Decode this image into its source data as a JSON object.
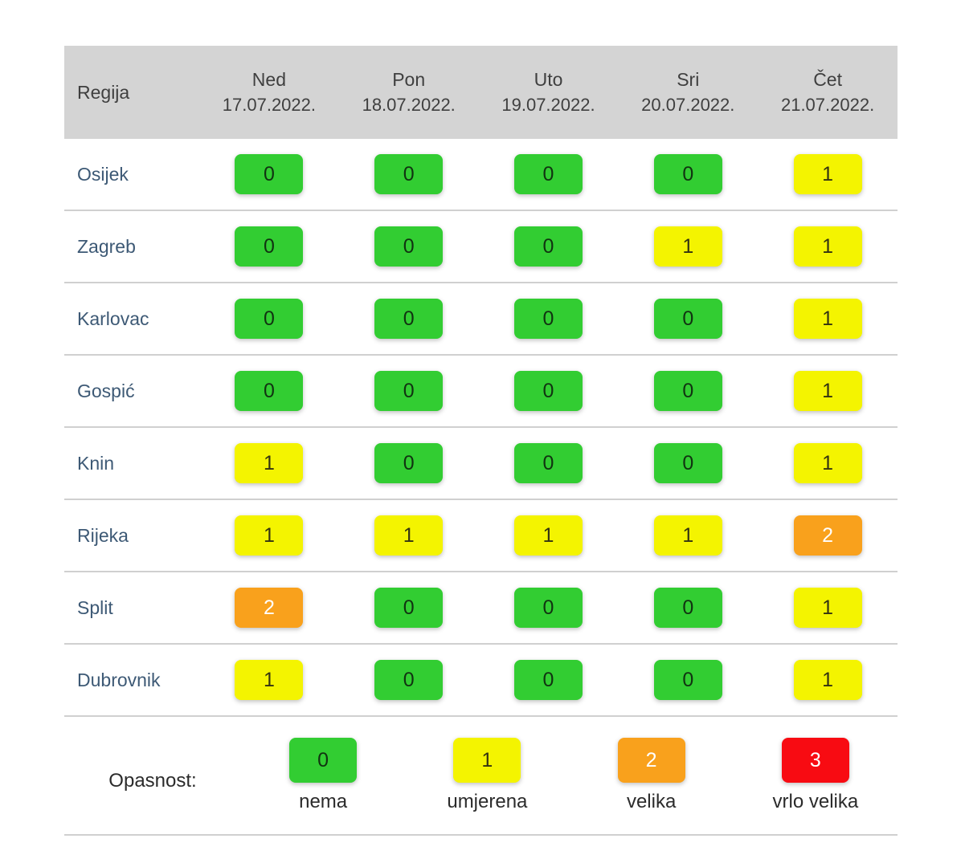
{
  "colors": {
    "green": "#32cd32",
    "yellow": "#f4f400",
    "orange": "#f9a11c",
    "red": "#f80b12",
    "header_bg": "#d4d4d4",
    "header_text": "#3f3f3f",
    "region_text": "#3d5975",
    "divider": "#d0d0d0"
  },
  "table": {
    "region_header": "Regija",
    "days": [
      {
        "name": "Ned",
        "date": "17.07.2022."
      },
      {
        "name": "Pon",
        "date": "18.07.2022."
      },
      {
        "name": "Uto",
        "date": "19.07.2022."
      },
      {
        "name": "Sri",
        "date": "20.07.2022."
      },
      {
        "name": "Čet",
        "date": "21.07.2022."
      }
    ],
    "rows": [
      {
        "region": "Osijek",
        "values": [
          0,
          0,
          0,
          0,
          1
        ]
      },
      {
        "region": "Zagreb",
        "values": [
          0,
          0,
          0,
          1,
          1
        ]
      },
      {
        "region": "Karlovac",
        "values": [
          0,
          0,
          0,
          0,
          1
        ]
      },
      {
        "region": "Gospić",
        "values": [
          0,
          0,
          0,
          0,
          1
        ]
      },
      {
        "region": "Knin",
        "values": [
          1,
          0,
          0,
          0,
          1
        ]
      },
      {
        "region": "Rijeka",
        "values": [
          1,
          1,
          1,
          1,
          2
        ]
      },
      {
        "region": "Split",
        "values": [
          2,
          0,
          0,
          0,
          1
        ]
      },
      {
        "region": "Dubrovnik",
        "values": [
          1,
          0,
          0,
          0,
          1
        ]
      }
    ]
  },
  "legend": {
    "label": "Opasnost:",
    "items": [
      {
        "value": "0",
        "label": "nema"
      },
      {
        "value": "1",
        "label": "umjerena"
      },
      {
        "value": "2",
        "label": "velika"
      },
      {
        "value": "3",
        "label": "vrlo velika"
      }
    ]
  }
}
